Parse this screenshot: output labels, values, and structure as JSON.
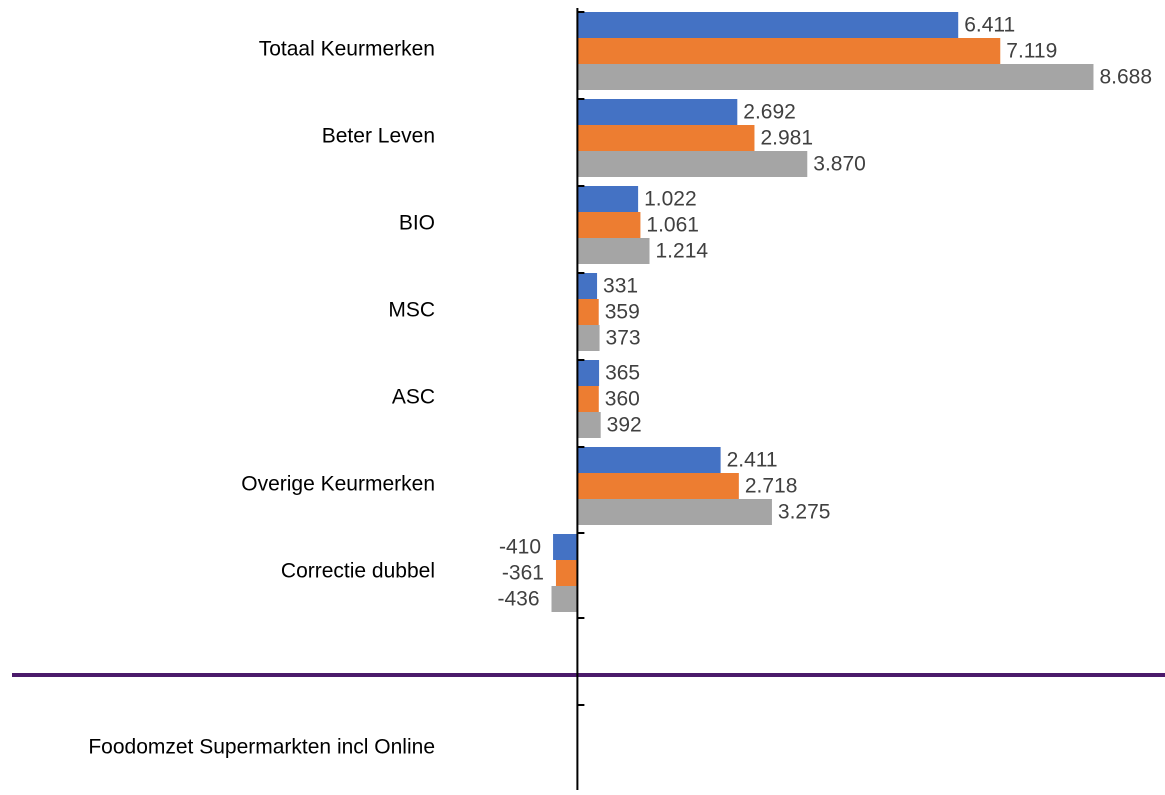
{
  "chart_data": {
    "type": "hbar",
    "categories": [
      "Totaal Keurmerken",
      "Beter Leven",
      "BIO",
      "MSC",
      "ASC",
      "Overige Keurmerken",
      "Correctie dubbel",
      null,
      "Foodomzet Supermarkten incl Online"
    ],
    "series": [
      {
        "color": "#4472c4",
        "values": [
          6411,
          2692,
          1022,
          331,
          365,
          2411,
          -410,
          null,
          null
        ],
        "value_labels": [
          "6.411",
          "2.692",
          "1.022",
          "331",
          "365",
          "2.411",
          "-410",
          null,
          null
        ]
      },
      {
        "color": "#ed7d31",
        "values": [
          7119,
          2981,
          1061,
          359,
          360,
          2718,
          -361,
          null,
          null
        ],
        "value_labels": [
          "7.119",
          "2.981",
          "1.061",
          "359",
          "360",
          "2.718",
          "-361",
          null,
          null
        ]
      },
      {
        "color": "#a5a5a5",
        "values": [
          8688,
          3870,
          1214,
          373,
          392,
          3275,
          -436,
          null,
          null
        ],
        "value_labels": [
          "8.688",
          "3.870",
          "1.214",
          "373",
          "392",
          "3.275",
          "-436",
          null,
          null
        ]
      }
    ],
    "xlim": [
      -1000,
      9000
    ]
  }
}
